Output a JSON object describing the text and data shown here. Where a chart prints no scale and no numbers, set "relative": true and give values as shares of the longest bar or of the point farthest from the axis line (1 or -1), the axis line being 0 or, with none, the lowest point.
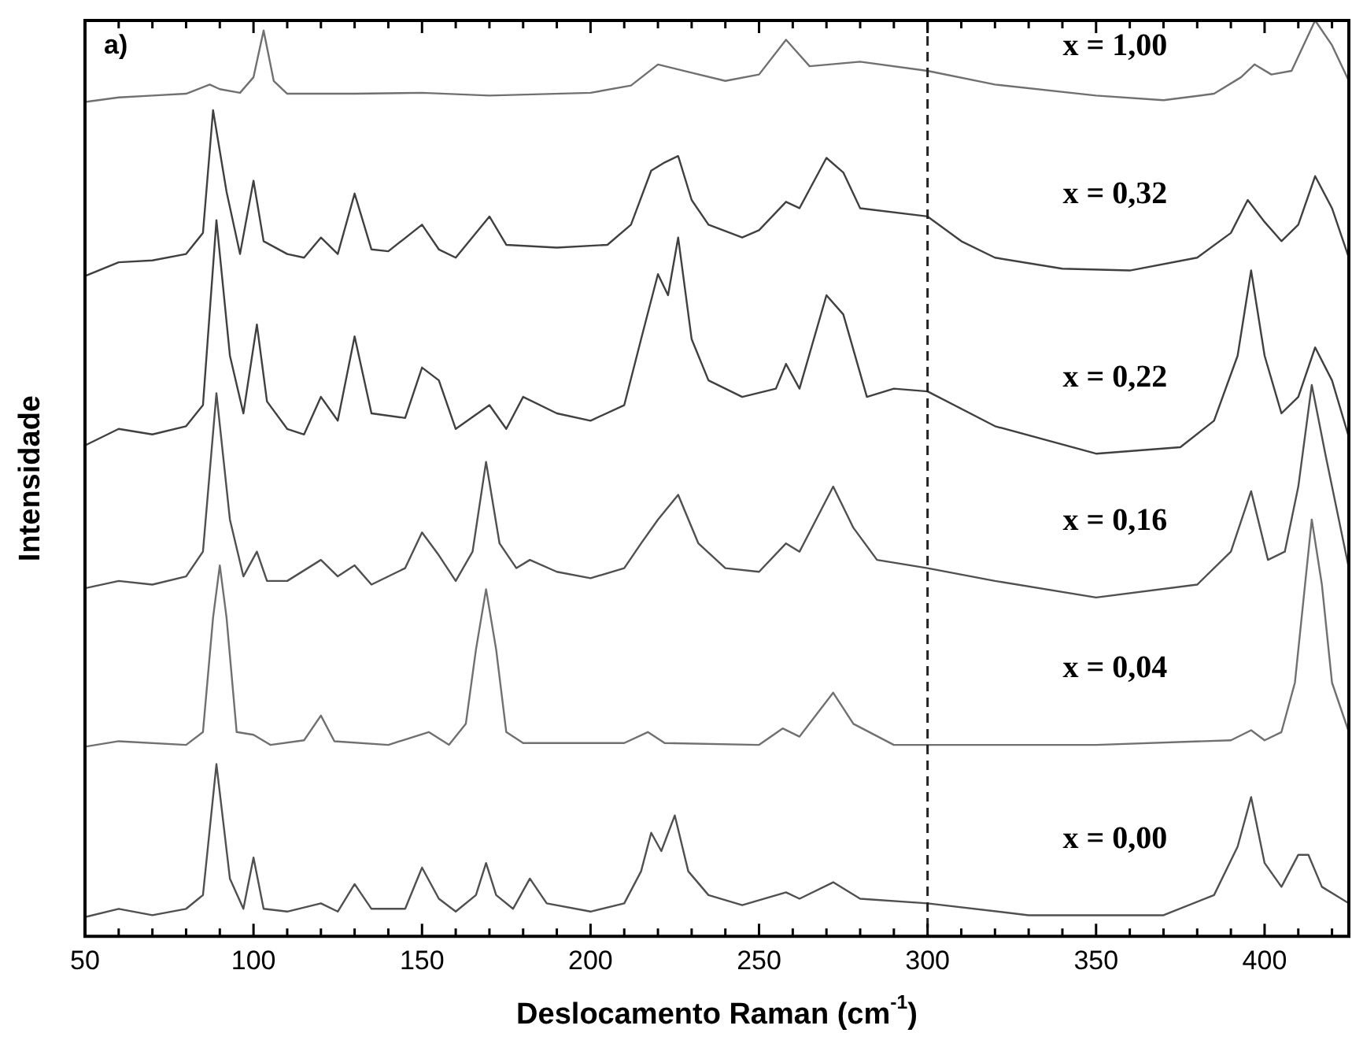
{
  "chart_data": {
    "type": "line",
    "xlabel": "Deslocamento Raman (cm$^{-1}$)",
    "ylabel": "Intensidade",
    "relative": true,
    "legend": false,
    "grid": false,
    "marker": "none",
    "line_style": "solid",
    "xlim": [
      50,
      425
    ],
    "xticks": [
      50,
      {
        "value": 60,
        "label": null
      },
      {
        "value": 70,
        "label": null
      },
      {
        "value": 80,
        "label": null
      },
      {
        "value": 90,
        "label": null
      },
      100,
      {
        "value": 110,
        "label": null
      },
      {
        "value": 120,
        "label": null
      },
      {
        "value": 130,
        "label": null
      },
      {
        "value": 140,
        "label": null
      },
      150,
      {
        "value": 160,
        "label": null
      },
      {
        "value": 170,
        "label": null
      },
      {
        "value": 180,
        "label": null
      },
      {
        "value": 190,
        "label": null
      },
      200,
      {
        "value": 210,
        "label": null
      },
      {
        "value": 220,
        "label": null
      },
      {
        "value": 230,
        "label": null
      },
      {
        "value": 240,
        "label": null
      },
      250,
      {
        "value": 260,
        "label": null
      },
      {
        "value": 270,
        "label": null
      },
      {
        "value": 280,
        "label": null
      },
      {
        "value": 290,
        "label": null
      },
      300,
      {
        "value": 310,
        "label": null
      },
      {
        "value": 320,
        "label": null
      },
      {
        "value": 330,
        "label": null
      },
      {
        "value": 340,
        "label": null
      },
      350,
      {
        "value": 360,
        "label": null
      },
      {
        "value": 370,
        "label": null
      },
      {
        "value": 380,
        "label": null
      },
      {
        "value": 390,
        "label": null
      },
      400,
      {
        "value": 410,
        "label": null
      },
      {
        "value": 420,
        "label": null
      }
    ],
    "ref_lines": [
      {
        "axis": "x",
        "value": 300,
        "color": "#222222",
        "line_style": "dashed"
      }
    ],
    "annotations": [
      "a)"
    ],
    "series": [
      {
        "name": "x = 1,00",
        "color": "#707070",
        "x": [
          50,
          60,
          70,
          80,
          87,
          90,
          96,
          100,
          103,
          106,
          110,
          130,
          150,
          170,
          200,
          212,
          220,
          230,
          240,
          250,
          258,
          265,
          280,
          300,
          320,
          350,
          370,
          385,
          393,
          397,
          402,
          408,
          415,
          420,
          425
        ],
        "values": [
          0.911,
          0.916,
          0.918,
          0.92,
          0.93,
          0.925,
          0.921,
          0.938,
          0.989,
          0.934,
          0.92,
          0.92,
          0.921,
          0.918,
          0.921,
          0.929,
          0.952,
          0.943,
          0.934,
          0.941,
          0.979,
          0.95,
          0.955,
          0.945,
          0.93,
          0.918,
          0.913,
          0.92,
          0.938,
          0.952,
          0.941,
          0.945,
          1,
          0.973,
          0.934
        ]
      },
      {
        "name": "x = 0,32",
        "color": "#404040",
        "x": [
          50,
          60,
          70,
          80,
          85,
          88,
          92,
          96,
          100,
          103,
          110,
          115,
          120,
          125,
          130,
          135,
          140,
          150,
          155,
          160,
          170,
          175,
          190,
          205,
          212,
          218,
          222,
          226,
          230,
          235,
          245,
          250,
          258,
          262,
          270,
          275,
          280,
          300,
          310,
          320,
          340,
          360,
          380,
          390,
          395,
          400,
          405,
          410,
          415,
          420,
          425
        ],
        "values": [
          0.721,
          0.736,
          0.738,
          0.745,
          0.768,
          0.902,
          0.813,
          0.745,
          0.825,
          0.759,
          0.745,
          0.741,
          0.763,
          0.745,
          0.811,
          0.75,
          0.748,
          0.777,
          0.75,
          0.741,
          0.786,
          0.755,
          0.752,
          0.755,
          0.777,
          0.836,
          0.845,
          0.852,
          0.804,
          0.777,
          0.763,
          0.771,
          0.802,
          0.795,
          0.85,
          0.834,
          0.795,
          0.786,
          0.759,
          0.741,
          0.729,
          0.727,
          0.741,
          0.768,
          0.804,
          0.78,
          0.759,
          0.777,
          0.83,
          0.795,
          0.741
        ]
      },
      {
        "name": "x = 0,22",
        "color": "#404040",
        "x": [
          50,
          60,
          70,
          80,
          85,
          89,
          93,
          97,
          101,
          104,
          110,
          115,
          120,
          125,
          130,
          135,
          145,
          150,
          155,
          160,
          170,
          175,
          180,
          190,
          200,
          210,
          215,
          220,
          223,
          226,
          230,
          235,
          245,
          255,
          258,
          262,
          270,
          275,
          282,
          290,
          300,
          320,
          350,
          375,
          385,
          392,
          396,
          400,
          405,
          410,
          415,
          420,
          425
        ],
        "values": [
          0.536,
          0.554,
          0.548,
          0.557,
          0.58,
          0.782,
          0.634,
          0.571,
          0.668,
          0.584,
          0.554,
          0.548,
          0.589,
          0.563,
          0.655,
          0.571,
          0.566,
          0.621,
          0.607,
          0.554,
          0.58,
          0.554,
          0.589,
          0.571,
          0.563,
          0.58,
          0.652,
          0.723,
          0.7,
          0.763,
          0.652,
          0.607,
          0.589,
          0.598,
          0.625,
          0.598,
          0.7,
          0.679,
          0.589,
          0.598,
          0.595,
          0.557,
          0.527,
          0.534,
          0.563,
          0.634,
          0.727,
          0.634,
          0.571,
          0.589,
          0.643,
          0.607,
          0.545
        ]
      },
      {
        "name": "x = 0,16",
        "color": "#505050",
        "x": [
          50,
          60,
          70,
          80,
          85,
          89,
          93,
          97,
          101,
          104,
          110,
          120,
          125,
          130,
          135,
          145,
          150,
          155,
          160,
          165,
          169,
          173,
          178,
          182,
          190,
          200,
          210,
          215,
          220,
          226,
          232,
          240,
          250,
          258,
          262,
          272,
          278,
          285,
          300,
          320,
          350,
          380,
          390,
          396,
          401,
          406,
          410,
          414,
          418,
          425
        ],
        "values": [
          0.38,
          0.388,
          0.384,
          0.393,
          0.42,
          0.593,
          0.455,
          0.393,
          0.42,
          0.388,
          0.388,
          0.411,
          0.393,
          0.405,
          0.384,
          0.402,
          0.441,
          0.416,
          0.388,
          0.42,
          0.518,
          0.429,
          0.402,
          0.411,
          0.398,
          0.391,
          0.402,
          0.429,
          0.455,
          0.482,
          0.429,
          0.402,
          0.398,
          0.429,
          0.42,
          0.491,
          0.446,
          0.411,
          0.402,
          0.388,
          0.37,
          0.384,
          0.42,
          0.486,
          0.411,
          0.42,
          0.491,
          0.602,
          0.527,
          0.402
        ]
      },
      {
        "name": "x = 0,04",
        "color": "#707070",
        "x": [
          50,
          60,
          80,
          85,
          88,
          90,
          92,
          95,
          100,
          105,
          115,
          120,
          124,
          140,
          152,
          158,
          163,
          166,
          169,
          172,
          175,
          180,
          210,
          217,
          222,
          250,
          257,
          262,
          272,
          278,
          290,
          350,
          390,
          396,
          400,
          405,
          409,
          412,
          414,
          417,
          420,
          425
        ],
        "values": [
          0.207,
          0.213,
          0.209,
          0.223,
          0.348,
          0.405,
          0.348,
          0.223,
          0.22,
          0.209,
          0.214,
          0.241,
          0.213,
          0.209,
          0.223,
          0.209,
          0.232,
          0.313,
          0.379,
          0.313,
          0.223,
          0.211,
          0.211,
          0.223,
          0.211,
          0.209,
          0.227,
          0.218,
          0.266,
          0.232,
          0.209,
          0.209,
          0.214,
          0.225,
          0.214,
          0.223,
          0.277,
          0.384,
          0.455,
          0.384,
          0.277,
          0.223
        ]
      },
      {
        "name": "x = 0,00",
        "color": "#505050",
        "x": [
          50,
          60,
          70,
          80,
          85,
          89,
          93,
          97,
          100,
          103,
          110,
          120,
          125,
          130,
          135,
          145,
          150,
          155,
          160,
          166,
          169,
          172,
          177,
          182,
          187,
          200,
          210,
          215,
          218,
          221,
          225,
          229,
          235,
          245,
          258,
          262,
          272,
          280,
          300,
          330,
          370,
          385,
          392,
          396,
          400,
          405,
          410,
          413,
          417,
          425
        ],
        "values": [
          0.021,
          0.03,
          0.023,
          0.03,
          0.045,
          0.188,
          0.063,
          0.03,
          0.086,
          0.03,
          0.027,
          0.036,
          0.027,
          0.057,
          0.03,
          0.03,
          0.075,
          0.041,
          0.027,
          0.045,
          0.08,
          0.045,
          0.03,
          0.063,
          0.036,
          0.027,
          0.036,
          0.071,
          0.113,
          0.093,
          0.132,
          0.071,
          0.045,
          0.034,
          0.048,
          0.041,
          0.059,
          0.041,
          0.036,
          0.023,
          0.023,
          0.045,
          0.098,
          0.152,
          0.08,
          0.054,
          0.089,
          0.089,
          0.054,
          0.036
        ]
      }
    ]
  }
}
